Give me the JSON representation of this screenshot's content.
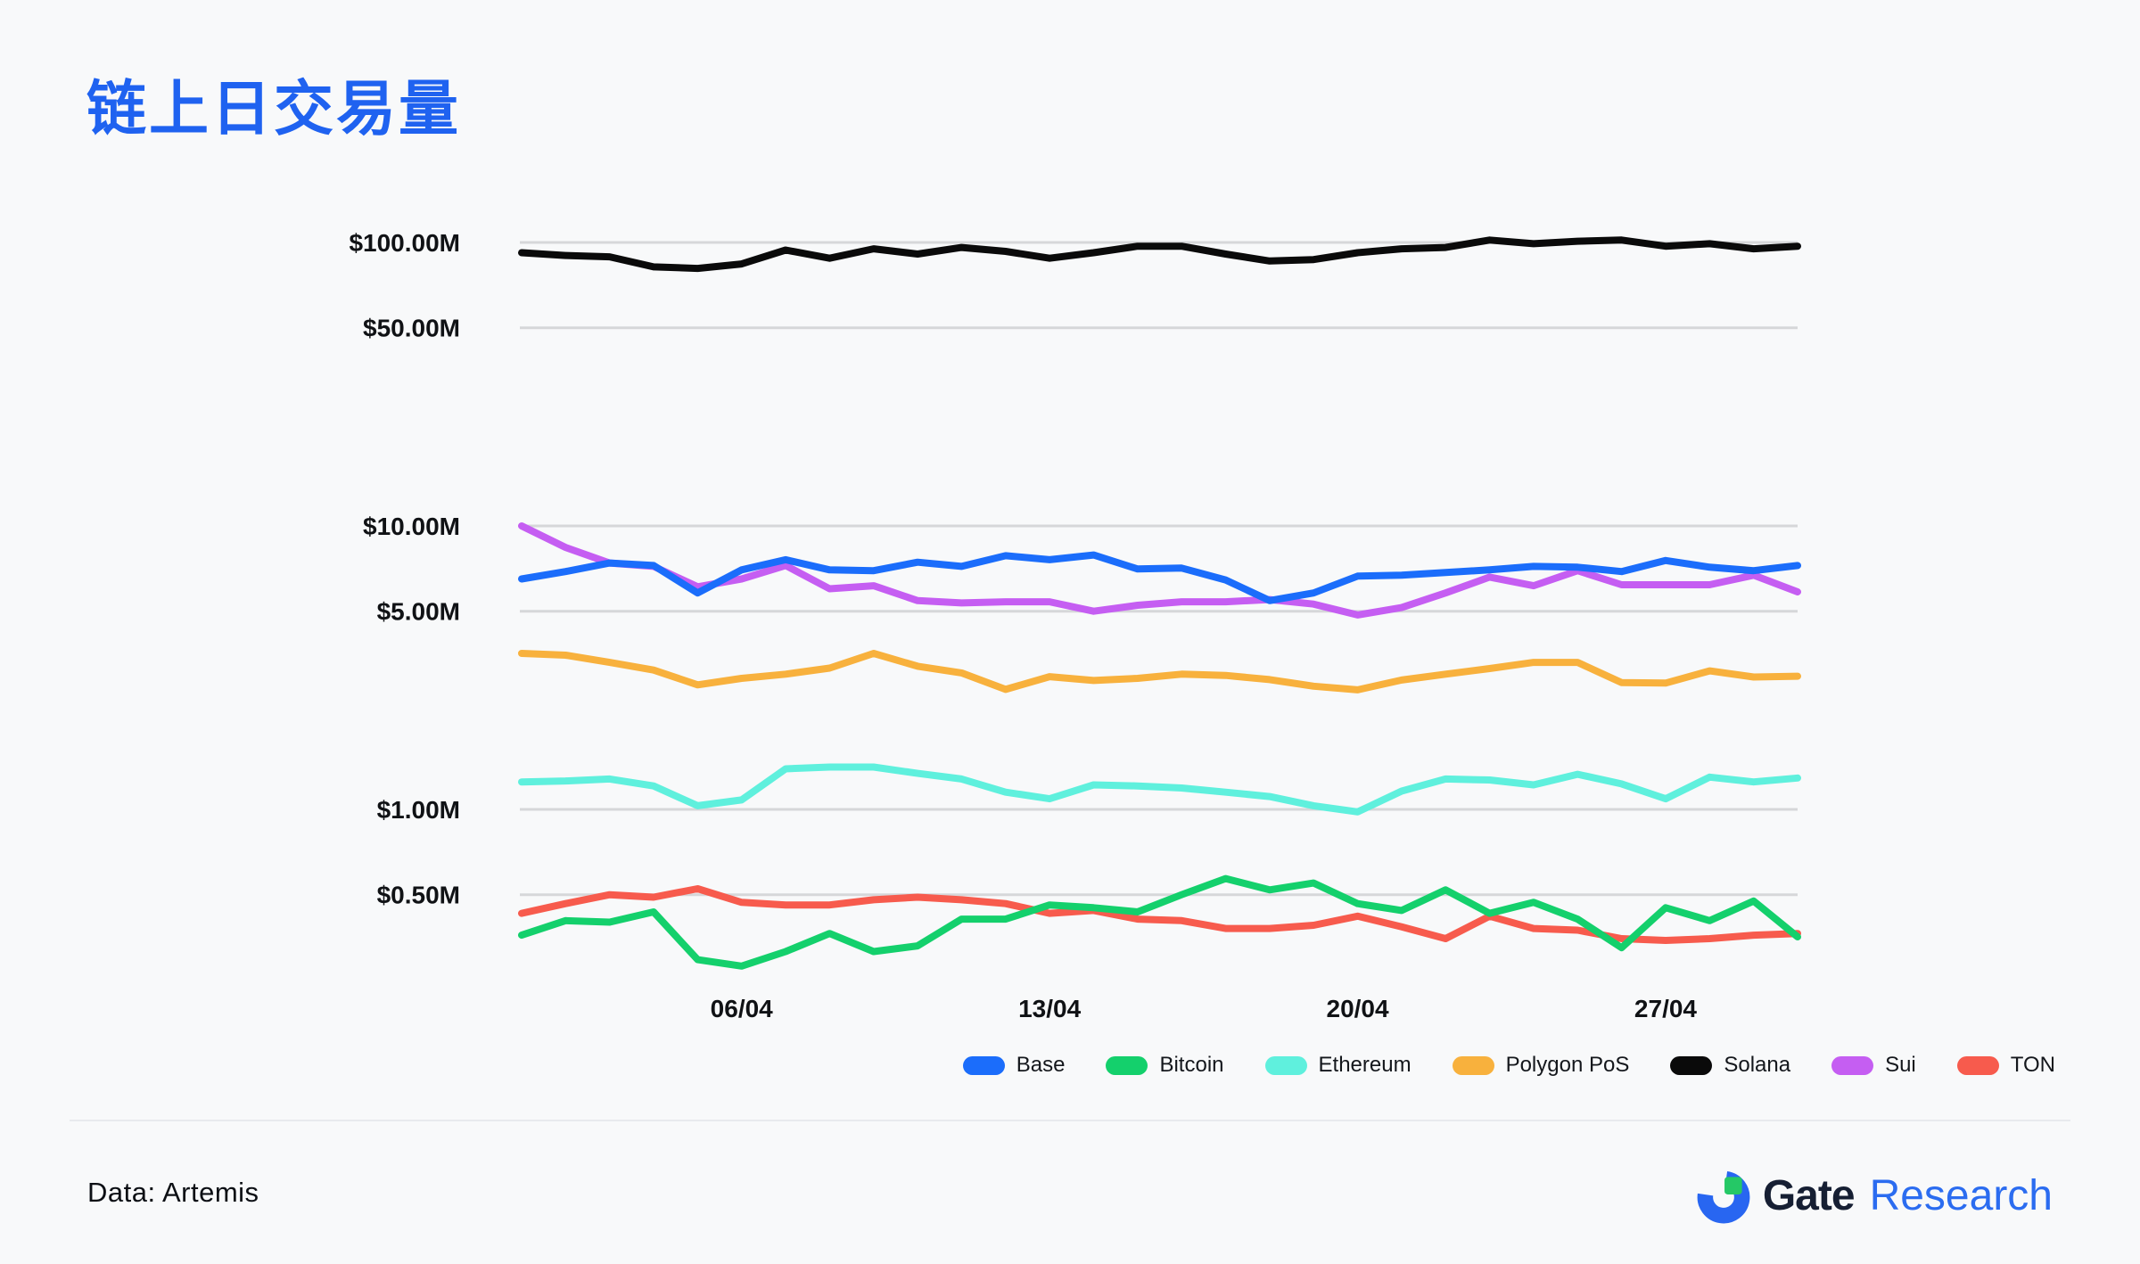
{
  "page": {
    "title": "链上日交易量",
    "title_color": "#1f62f0",
    "background_color": "#f8f9fa"
  },
  "footer": {
    "source": "Data: Artemis",
    "brand": {
      "gate": "Gate",
      "research": "Research",
      "gate_color": "#161f33",
      "research_color": "#2b6cf0",
      "logo_blue": "#2866f1",
      "logo_green": "#25c866"
    }
  },
  "chart_data": {
    "type": "line",
    "title": "链上日交易量",
    "y_scale": "log",
    "y_unit": "USD millions",
    "ylim": [
      0.3,
      130
    ],
    "grid": "horizontal-only",
    "gridline_color": "#d6d7d9",
    "legend_position": "bottom-right",
    "n_points": 30,
    "x_tick_labels": [
      "06/04",
      "13/04",
      "20/04",
      "27/04"
    ],
    "x_tick_indices": [
      5,
      12,
      19,
      26
    ],
    "y_gridlines": [
      {
        "value": 100,
        "label": "$100.00M"
      },
      {
        "value": 50,
        "label": "$50.00M"
      },
      {
        "value": 10,
        "label": "$10.00M"
      },
      {
        "value": 5,
        "label": "$5.00M"
      },
      {
        "value": 1,
        "label": "$1.00M"
      },
      {
        "value": 0.5,
        "label": "$0.50M"
      }
    ],
    "series": [
      {
        "name": "Base",
        "color": "#1b6dfb",
        "values": [
          6.5,
          6.9,
          7.4,
          7.25,
          5.8,
          7.0,
          7.6,
          7.0,
          6.95,
          7.45,
          7.2,
          7.85,
          7.6,
          7.9,
          7.05,
          7.1,
          6.45,
          5.45,
          5.8,
          6.65,
          6.7,
          6.85,
          7.0,
          7.2,
          7.15,
          6.9,
          7.55,
          7.15,
          6.95,
          7.25
        ]
      },
      {
        "name": "Bitcoin",
        "color": "#14d06c",
        "values": [
          0.36,
          0.405,
          0.4,
          0.435,
          0.295,
          0.28,
          0.315,
          0.365,
          0.315,
          0.33,
          0.41,
          0.41,
          0.46,
          0.45,
          0.435,
          0.5,
          0.57,
          0.52,
          0.55,
          0.465,
          0.44,
          0.52,
          0.43,
          0.47,
          0.41,
          0.325,
          0.45,
          0.405,
          0.475,
          0.355
        ]
      },
      {
        "name": "Ethereum",
        "color": "#5ff0dd",
        "values": [
          1.25,
          1.26,
          1.28,
          1.21,
          1.03,
          1.08,
          1.39,
          1.41,
          1.41,
          1.34,
          1.28,
          1.15,
          1.09,
          1.22,
          1.21,
          1.19,
          1.15,
          1.11,
          1.03,
          0.98,
          1.16,
          1.28,
          1.27,
          1.22,
          1.33,
          1.23,
          1.09,
          1.3,
          1.25,
          1.29
        ]
      },
      {
        "name": "Polygon PoS",
        "color": "#f8b13d",
        "values": [
          3.55,
          3.5,
          3.3,
          3.1,
          2.75,
          2.9,
          3.0,
          3.15,
          3.55,
          3.2,
          3.03,
          2.65,
          2.94,
          2.85,
          2.9,
          3.0,
          2.97,
          2.87,
          2.72,
          2.64,
          2.86,
          3.0,
          3.14,
          3.3,
          3.3,
          2.8,
          2.79,
          3.08,
          2.93,
          2.95
        ]
      },
      {
        "name": "Solana",
        "color": "#0a0a0a",
        "values": [
          92,
          90,
          89,
          82,
          81,
          84,
          94,
          88,
          95,
          91,
          96,
          93,
          88,
          92,
          97,
          97,
          91,
          86,
          87,
          92,
          95,
          96,
          102,
          99,
          101,
          102,
          97,
          99,
          95,
          97
        ]
      },
      {
        "name": "Sui",
        "color": "#c55ef2",
        "values": [
          10,
          8.4,
          7.4,
          7.2,
          6.1,
          6.5,
          7.25,
          6.0,
          6.15,
          5.45,
          5.35,
          5.4,
          5.4,
          5.0,
          5.25,
          5.4,
          5.4,
          5.5,
          5.3,
          4.85,
          5.15,
          5.8,
          6.6,
          6.15,
          6.95,
          6.2,
          6.2,
          6.2,
          6.7,
          5.85
        ]
      },
      {
        "name": "TON",
        "color": "#f75b4d",
        "values": [
          0.43,
          0.465,
          0.5,
          0.49,
          0.525,
          0.47,
          0.46,
          0.46,
          0.48,
          0.49,
          0.48,
          0.465,
          0.43,
          0.44,
          0.41,
          0.405,
          0.38,
          0.38,
          0.39,
          0.42,
          0.385,
          0.35,
          0.42,
          0.38,
          0.375,
          0.35,
          0.345,
          0.35,
          0.36,
          0.365
        ]
      }
    ]
  }
}
